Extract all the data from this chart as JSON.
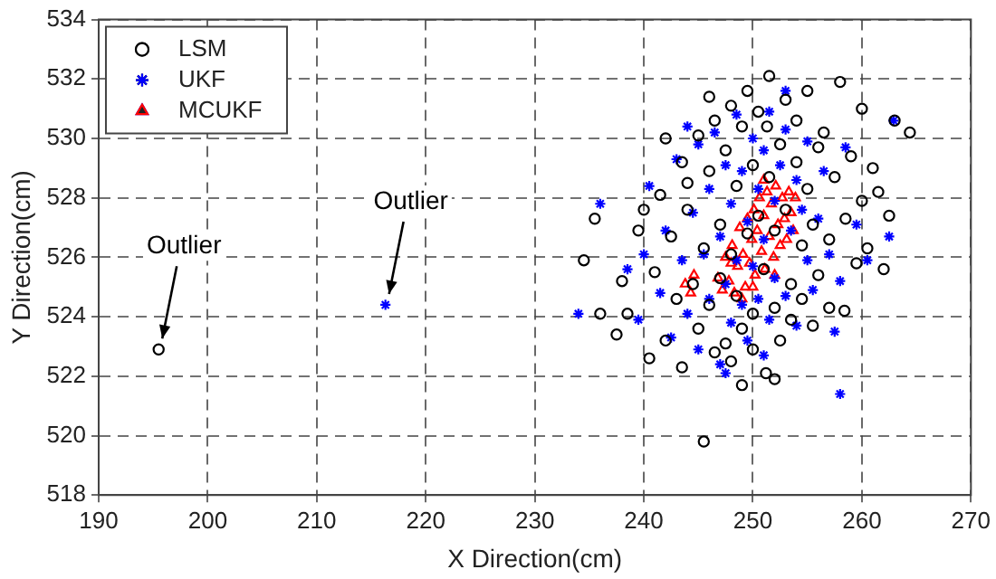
{
  "chart_data": {
    "type": "scatter",
    "xlabel": "X Direction(cm)",
    "ylabel": "Y Direction(cm)",
    "xlim": [
      190,
      270
    ],
    "xticks": [
      190,
      200,
      210,
      220,
      230,
      240,
      250,
      260,
      270
    ],
    "ylim": [
      518,
      534
    ],
    "yticks": [
      518,
      520,
      522,
      524,
      526,
      528,
      530,
      532,
      534
    ],
    "grid": true,
    "legend": "top left",
    "annotations": [
      {
        "text": "Outlier",
        "x": 195.5,
        "y": 522.9
      },
      {
        "text": "Outlier",
        "x": 216.3,
        "y": 524.4
      }
    ],
    "series": [
      {
        "name": "LSM",
        "color": "#000000",
        "marker": "circle",
        "x": [
          195.5,
          234.5,
          235.5,
          237.5,
          238.5,
          239.5,
          240.5,
          241,
          241.5,
          242,
          242.5,
          243,
          243.5,
          243.5,
          244,
          244.5,
          245,
          245,
          245.5,
          245.5,
          246,
          246,
          246.5,
          246.5,
          247,
          247,
          247.5,
          247.5,
          248,
          248,
          248,
          248.5,
          248.5,
          249,
          249,
          249.5,
          249.5,
          250,
          250,
          250,
          250.5,
          250.5,
          251,
          251.2,
          251.3,
          251.5,
          251.5,
          252,
          252,
          252.5,
          252.5,
          253,
          253,
          253.5,
          253.5,
          254,
          254,
          254.5,
          254.5,
          255,
          255,
          255.5,
          255.5,
          256,
          256,
          256.5,
          257,
          257,
          257.5,
          258,
          258.4,
          258.5,
          259,
          259.5,
          260,
          260,
          260.5,
          261,
          261.5,
          262,
          262.5,
          263,
          264.4,
          244,
          242,
          240,
          246,
          252,
          249,
          238,
          236
        ],
        "values": [
          522.9,
          525.9,
          527.3,
          523.4,
          524.1,
          526.9,
          522.6,
          525.5,
          528.1,
          523.2,
          526.7,
          524.6,
          529.2,
          522.3,
          527.6,
          525.1,
          530.1,
          523.6,
          519.8,
          526.3,
          528.9,
          524.4,
          522.8,
          530.6,
          527.1,
          525.3,
          523.1,
          529.6,
          531.1,
          526.1,
          522.5,
          524.7,
          528.4,
          530.4,
          523.6,
          526.8,
          531.6,
          524.1,
          529.1,
          522.9,
          527.4,
          530.9,
          525.6,
          522.1,
          530.4,
          528.7,
          532.1,
          524.3,
          526.9,
          529.8,
          523.2,
          531.3,
          527.6,
          525.1,
          523.9,
          529.2,
          530.6,
          526.4,
          524.6,
          528.3,
          531.6,
          523.7,
          527.1,
          529.7,
          525.4,
          530.2,
          526.6,
          524.3,
          528.7,
          531.9,
          524.2,
          527.3,
          529.4,
          525.8,
          531.0,
          527.9,
          526.3,
          529.0,
          528.2,
          525.6,
          527.4,
          530.6,
          530.2,
          528.5,
          530.0,
          527.6,
          531.4,
          521.9,
          521.7,
          525.2,
          524.1
        ]
      },
      {
        "name": "UKF",
        "color": "#0000ff",
        "marker": "cross",
        "x": [
          216.3,
          234,
          236,
          238.5,
          239.5,
          240.5,
          241.5,
          242,
          242.5,
          243,
          243.5,
          244,
          244.5,
          245,
          245,
          245.5,
          246,
          246,
          246.5,
          247,
          247,
          247.5,
          247.5,
          248,
          248,
          248.5,
          248.5,
          249,
          249,
          249.5,
          249.5,
          250,
          250,
          250.5,
          250.5,
          251,
          251,
          251.5,
          251.5,
          252,
          252,
          252.5,
          253,
          253,
          253.5,
          254,
          254,
          254.5,
          255,
          255,
          255.5,
          256,
          256.5,
          257,
          257.5,
          258,
          258.5,
          259.5,
          260.5,
          262.5,
          262.9,
          258,
          247.5,
          251,
          244,
          240,
          253
        ],
        "values": [
          524.4,
          524.1,
          527.8,
          525.6,
          523.9,
          528.4,
          524.8,
          526.9,
          523.3,
          529.3,
          525.9,
          524.1,
          527.5,
          522.9,
          529.8,
          526.1,
          524.6,
          528.3,
          530.2,
          522.4,
          526.7,
          525.1,
          529.1,
          523.8,
          527.8,
          530.8,
          525.9,
          524.4,
          528.9,
          527.2,
          523.2,
          530.0,
          525.7,
          528.3,
          524.6,
          529.6,
          526.6,
          530.9,
          523.9,
          527.9,
          525.3,
          529.1,
          524.7,
          530.3,
          526.9,
          528.6,
          523.7,
          527.6,
          525.9,
          529.9,
          524.9,
          527.3,
          528.9,
          526.1,
          523.5,
          525.2,
          529.7,
          527.1,
          525.9,
          526.7,
          530.6,
          521.4,
          522.1,
          522.7,
          530.4,
          526.1,
          531.6
        ]
      },
      {
        "name": "MCUKF",
        "color": "#ff0000",
        "marker": "triangle",
        "x": [
          243.8,
          244.3,
          244.6,
          246.8,
          247.2,
          247.5,
          247.8,
          248.1,
          248.3,
          248.6,
          248.8,
          249.1,
          249.3,
          249.5,
          249.7,
          249.9,
          250.1,
          250.2,
          250.4,
          250.6,
          250.8,
          251.0,
          251.1,
          251.3,
          251.5,
          251.7,
          251.9,
          252.1,
          252.3,
          252.5,
          252.7,
          252.9,
          253.1,
          253.3,
          253.5,
          253.7,
          253.9,
          248.0,
          249.0,
          250.0,
          251.0,
          252.0
        ],
        "values": [
          525.1,
          524.8,
          525.4,
          525.3,
          524.9,
          526.0,
          525.2,
          526.4,
          524.8,
          525.7,
          527.0,
          526.1,
          525.0,
          527.3,
          525.8,
          526.6,
          527.6,
          525.4,
          526.9,
          528.0,
          526.2,
          527.4,
          525.6,
          528.2,
          526.7,
          527.8,
          526.0,
          528.4,
          527.1,
          526.4,
          528.0,
          527.3,
          526.6,
          528.2,
          527.5,
          526.9,
          528.0,
          525.8,
          524.6,
          525.0,
          528.6,
          525.4
        ]
      }
    ]
  }
}
